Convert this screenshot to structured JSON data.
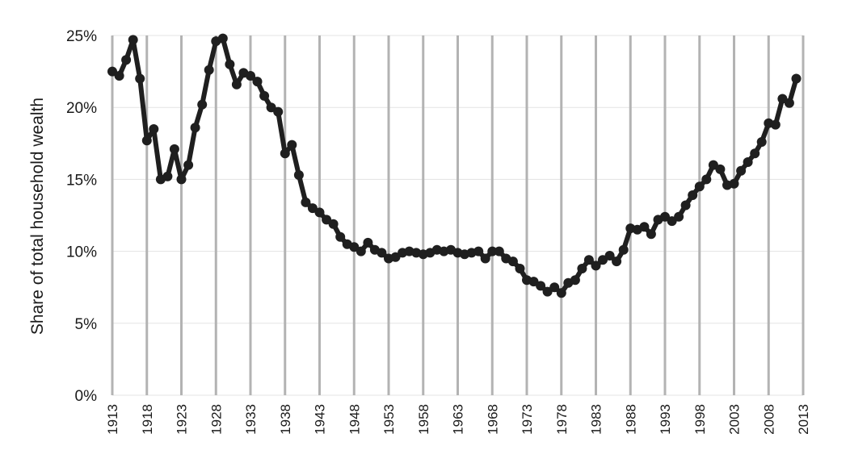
{
  "chart_data": {
    "type": "line",
    "title": "",
    "xlabel": "",
    "ylabel": "Share of total household wealth",
    "xlim": [
      1913,
      2013
    ],
    "ylim": [
      0,
      25
    ],
    "y_ticks": [
      {
        "value": 0,
        "label": "0%"
      },
      {
        "value": 5,
        "label": "5%"
      },
      {
        "value": 10,
        "label": "10%"
      },
      {
        "value": 15,
        "label": "15%"
      },
      {
        "value": 20,
        "label": "20%"
      },
      {
        "value": 25,
        "label": "25%"
      }
    ],
    "x_ticks": [
      1913,
      1918,
      1923,
      1928,
      1933,
      1938,
      1943,
      1948,
      1953,
      1958,
      1963,
      1968,
      1973,
      1978,
      1983,
      1988,
      1993,
      1998,
      2003,
      2008,
      2013
    ],
    "grid": {
      "vertical": true,
      "horizontal": true
    },
    "colors": {
      "line": "#1f1f1f",
      "vertical_grid": "#b3b3b3",
      "horizontal_grid": "#e3e3e3"
    },
    "x": [
      1913,
      1914,
      1915,
      1916,
      1917,
      1918,
      1919,
      1920,
      1921,
      1922,
      1923,
      1924,
      1925,
      1926,
      1927,
      1928,
      1929,
      1930,
      1931,
      1932,
      1933,
      1934,
      1935,
      1936,
      1937,
      1938,
      1939,
      1940,
      1941,
      1942,
      1943,
      1944,
      1945,
      1946,
      1947,
      1948,
      1949,
      1950,
      1951,
      1952,
      1953,
      1954,
      1955,
      1956,
      1957,
      1958,
      1959,
      1960,
      1961,
      1962,
      1963,
      1964,
      1965,
      1966,
      1967,
      1968,
      1969,
      1970,
      1971,
      1972,
      1973,
      1974,
      1975,
      1976,
      1977,
      1978,
      1979,
      1980,
      1981,
      1982,
      1983,
      1984,
      1985,
      1986,
      1987,
      1988,
      1989,
      1990,
      1991,
      1992,
      1993,
      1994,
      1995,
      1996,
      1997,
      1998,
      1999,
      2000,
      2001,
      2002,
      2003,
      2004,
      2005,
      2006,
      2007,
      2008,
      2009,
      2010,
      2011,
      2012
    ],
    "values": [
      22.5,
      22.2,
      23.3,
      24.7,
      22.0,
      17.7,
      18.5,
      15.0,
      15.2,
      17.1,
      15.0,
      16.0,
      18.6,
      20.2,
      22.6,
      24.6,
      24.8,
      23.0,
      21.6,
      22.4,
      22.2,
      21.8,
      20.8,
      20.0,
      19.7,
      16.8,
      17.4,
      15.3,
      13.4,
      13.0,
      12.7,
      12.2,
      11.9,
      11.0,
      10.5,
      10.3,
      10.0,
      10.6,
      10.1,
      9.9,
      9.5,
      9.6,
      9.9,
      10.0,
      9.9,
      9.8,
      9.9,
      10.1,
      10.0,
      10.1,
      9.9,
      9.8,
      9.9,
      10.0,
      9.5,
      10.0,
      10.0,
      9.5,
      9.3,
      8.8,
      8.0,
      7.9,
      7.6,
      7.2,
      7.5,
      7.1,
      7.8,
      8.0,
      8.8,
      9.4,
      9.0,
      9.4,
      9.7,
      9.3,
      10.1,
      11.6,
      11.5,
      11.7,
      11.2,
      12.2,
      12.4,
      12.1,
      12.4,
      13.2,
      13.9,
      14.5,
      15.0,
      16.0,
      15.7,
      14.6,
      14.7,
      15.6,
      16.2,
      16.8,
      17.6,
      18.9,
      18.8,
      20.6,
      20.3,
      22.0
    ]
  }
}
